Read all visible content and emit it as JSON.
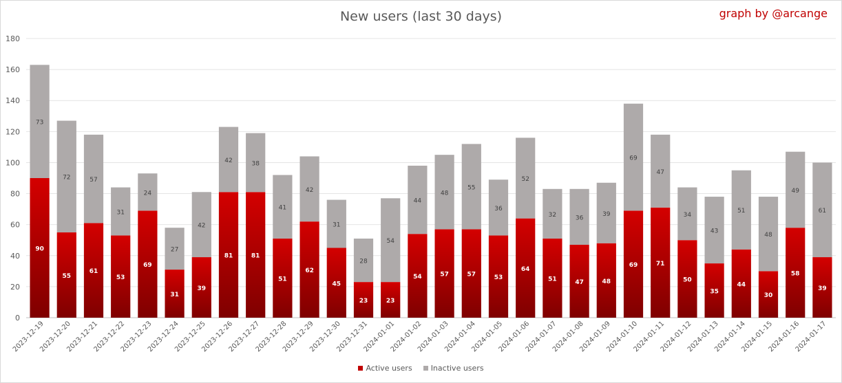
{
  "chart_data": {
    "type": "bar",
    "stacked": true,
    "title": "New users (last 30 days)",
    "watermark": "graph by @arcange",
    "categories": [
      "2023-12-19",
      "2023-12-20",
      "2023-12-21",
      "2023-12-22",
      "2023-12-23",
      "2023-12-24",
      "2023-12-25",
      "2023-12-26",
      "2023-12-27",
      "2023-12-28",
      "2023-12-29",
      "2023-12-30",
      "2023-12-31",
      "2024-01-01",
      "2024-01-02",
      "2024-01-03",
      "2024-01-04",
      "2024-01-05",
      "2024-01-06",
      "2024-01-07",
      "2024-01-08",
      "2024-01-09",
      "2024-01-10",
      "2024-01-11",
      "2024-01-12",
      "2024-01-13",
      "2024-01-14",
      "2024-01-15",
      "2024-01-16",
      "2024-01-17"
    ],
    "series": [
      {
        "name": "Active users",
        "color": "#c00000",
        "values": [
          90,
          55,
          61,
          53,
          69,
          31,
          39,
          81,
          81,
          51,
          62,
          45,
          23,
          23,
          54,
          57,
          57,
          53,
          64,
          51,
          47,
          48,
          69,
          71,
          50,
          35,
          44,
          30,
          58,
          39
        ]
      },
      {
        "name": "Inactive users",
        "color": "#aeaaaa",
        "values": [
          73,
          72,
          57,
          31,
          24,
          27,
          42,
          42,
          38,
          41,
          42,
          31,
          28,
          54,
          44,
          48,
          55,
          36,
          52,
          32,
          36,
          39,
          69,
          47,
          34,
          43,
          51,
          48,
          49,
          61
        ]
      }
    ],
    "ylim": [
      0,
      180
    ],
    "yticks": [
      0,
      20,
      40,
      60,
      80,
      100,
      120,
      140,
      160,
      180
    ],
    "grid": true,
    "legend_position": "bottom",
    "data_labels": true
  }
}
